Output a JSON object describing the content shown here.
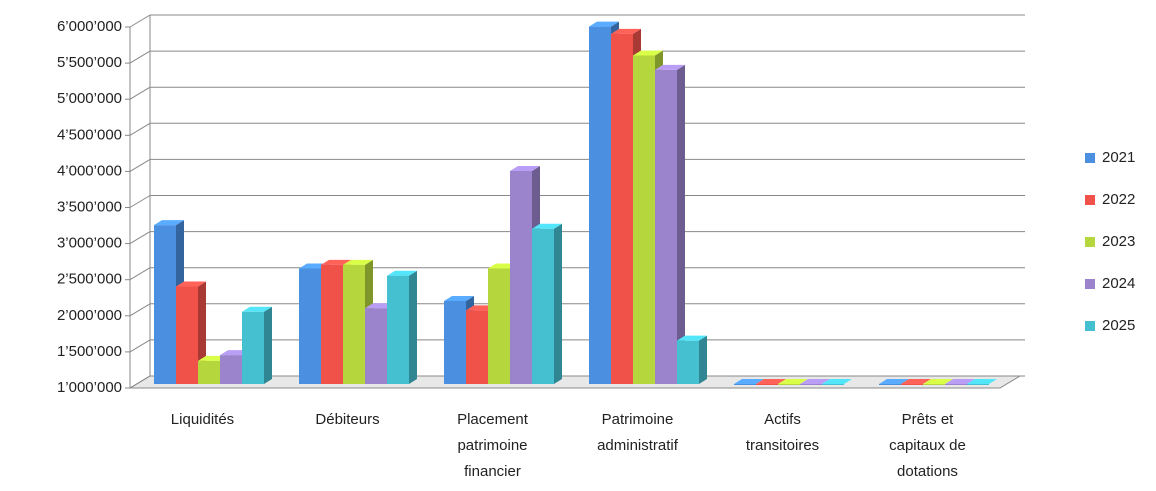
{
  "chart_data": {
    "type": "bar3d",
    "categories": [
      "Liquidités",
      "Débiteurs",
      "Placement patrimoine financier",
      "Patrimoine administratif",
      "Actifs transitoires",
      "Prêts et capitaux de dotations"
    ],
    "series": [
      {
        "name": "2021",
        "color": "#4a8fe0",
        "values": [
          3200000,
          2600000,
          2150000,
          5950000,
          0,
          0
        ]
      },
      {
        "name": "2022",
        "color": "#f0524a",
        "values": [
          2350000,
          2650000,
          2020000,
          5850000,
          0,
          0
        ]
      },
      {
        "name": "2023",
        "color": "#b5d63c",
        "values": [
          1320000,
          2650000,
          2600000,
          5550000,
          0,
          0
        ]
      },
      {
        "name": "2024",
        "color": "#9b84cc",
        "values": [
          1400000,
          2050000,
          3950000,
          5350000,
          0,
          0
        ]
      },
      {
        "name": "2025",
        "color": "#45c0d0",
        "values": [
          2000000,
          2500000,
          3150000,
          1600000,
          0,
          0
        ]
      }
    ],
    "ylim": [
      1000000,
      6000000
    ],
    "yticks": [
      {
        "value": 1000000,
        "label": "1’000’000"
      },
      {
        "value": 1500000,
        "label": "1’500’000"
      },
      {
        "value": 2000000,
        "label": "2’000’000"
      },
      {
        "value": 2500000,
        "label": "2’500’000"
      },
      {
        "value": 3000000,
        "label": "3’000’000"
      },
      {
        "value": 3500000,
        "label": "3’500’000"
      },
      {
        "value": 4000000,
        "label": "4’000’000"
      },
      {
        "value": 4500000,
        "label": "4’500’000"
      },
      {
        "value": 5000000,
        "label": "5’000’000"
      },
      {
        "value": 5500000,
        "label": "5’500’000"
      },
      {
        "value": 6000000,
        "label": "6’000’000"
      }
    ],
    "grid": true,
    "legend": "right"
  }
}
